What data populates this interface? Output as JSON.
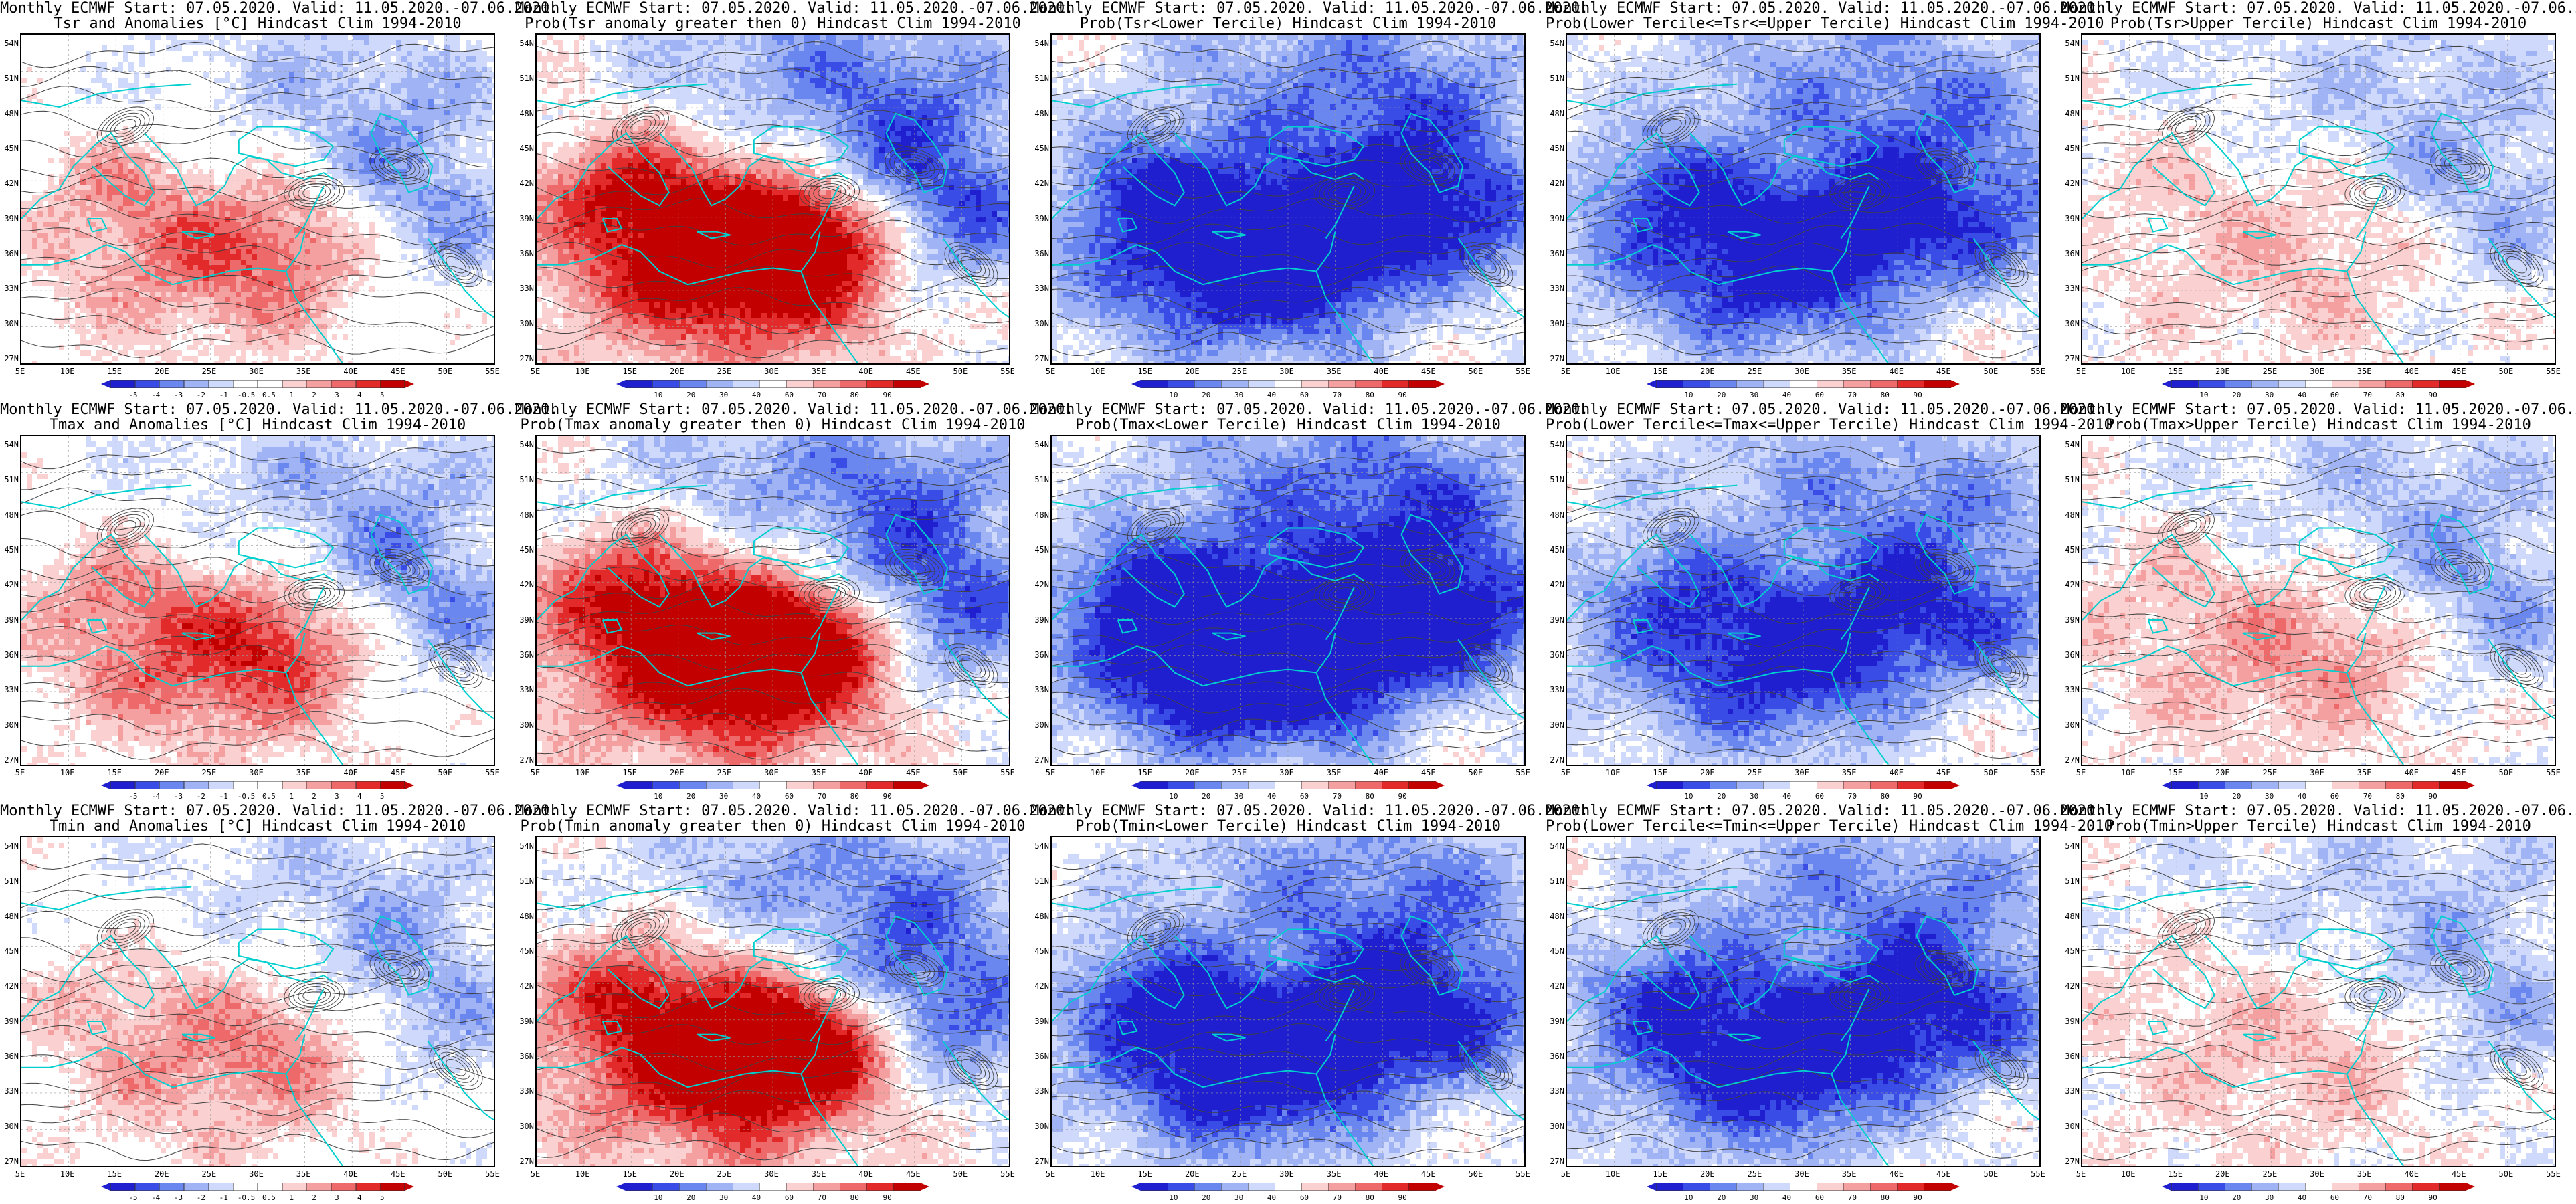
{
  "figure_title": "Monthly ECMWF Start: 07.05.2020. Valid: 11.05.2020.-07.06.2020.",
  "colors": {
    "anomaly": [
      "#1f1fd0",
      "#3a4ce6",
      "#6a86ef",
      "#9fb3f5",
      "#cfd9fb",
      "#ffffff",
      "#ffffff",
      "#fbd0d0",
      "#f4a0a0",
      "#ee6a6a",
      "#e22a2a",
      "#c30000"
    ],
    "probability": [
      "#1f1fd0",
      "#3a4ce6",
      "#6a86ef",
      "#9fb3f5",
      "#cfd9fb",
      "#ffffff",
      "#fbd0d0",
      "#f4a0a0",
      "#ee6a6a",
      "#e22a2a",
      "#c30000"
    ],
    "coast": "#00cfcf",
    "contour": "#404040"
  },
  "axes": {
    "lat_labels": [
      "54N",
      "51N",
      "48N",
      "45N",
      "42N",
      "39N",
      "36N",
      "33N",
      "30N",
      "27N"
    ],
    "lon_labels": [
      "5E",
      "10E",
      "15E",
      "20E",
      "25E",
      "30E",
      "35E",
      "40E",
      "45E",
      "50E",
      "55E"
    ]
  },
  "colorbars": {
    "anomaly": [
      "-5",
      "-4",
      "-3",
      "-2",
      "-1",
      "-0.5",
      "0.5",
      "1",
      "2",
      "3",
      "4",
      "5"
    ],
    "probability": [
      "10",
      "20",
      "30",
      "40",
      "60",
      "70",
      "80",
      "90"
    ]
  },
  "panels": [
    {
      "line2": "Tsr and Anomalies [°C] Hindcast Clim 1994-2010",
      "cbar": "anomaly",
      "tone": 0.25
    },
    {
      "line2": "Prob(Tsr anomaly greater then 0) Hindcast Clim 1994-2010",
      "cbar": "probability",
      "tone": 0.55
    },
    {
      "line2": "Prob(Tsr<Lower Tercile) Hindcast Clim 1994-2010",
      "cbar": "probability",
      "tone": -0.55
    },
    {
      "line2": "Prob(Lower Tercile<=Tsr<=Upper Tercile) Hindcast Clim 1994-2010",
      "cbar": "probability",
      "tone": -0.45
    },
    {
      "line2": "Prob(Tsr>Upper Tercile) Hindcast Clim 1994-2010",
      "cbar": "probability",
      "tone": 0.1
    },
    {
      "line2": "Tmax and Anomalies [°C] Hindcast Clim 1994-2010",
      "cbar": "anomaly",
      "tone": 0.3
    },
    {
      "line2": "Prob(Tmax anomaly greater then 0) Hindcast Clim 1994-2010",
      "cbar": "probability",
      "tone": 0.55
    },
    {
      "line2": "Prob(Tmax<Lower Tercile) Hindcast Clim 1994-2010",
      "cbar": "probability",
      "tone": -0.65
    },
    {
      "line2": "Prob(Lower Tercile<=Tmax<=Upper Tercile) Hindcast Clim 1994-2010",
      "cbar": "probability",
      "tone": -0.4
    },
    {
      "line2": "Prob(Tmax>Upper Tercile) Hindcast Clim 1994-2010",
      "cbar": "probability",
      "tone": 0.15
    },
    {
      "line2": "Tmin and Anomalies [°C] Hindcast Clim 1994-2010",
      "cbar": "anomaly",
      "tone": 0.2
    },
    {
      "line2": "Prob(Tmin anomaly greater then 0) Hindcast Clim 1994-2010",
      "cbar": "probability",
      "tone": 0.5
    },
    {
      "line2": "Prob(Tmin<Lower Tercile) Hindcast Clim 1994-2010",
      "cbar": "probability",
      "tone": -0.5
    },
    {
      "line2": "Prob(Lower Tercile<=Tmin<=Upper Tercile) Hindcast Clim 1994-2010",
      "cbar": "probability",
      "tone": -0.45
    },
    {
      "line2": "Prob(Tmin>Upper Tercile) Hindcast Clim 1994-2010",
      "cbar": "probability",
      "tone": 0.1
    }
  ]
}
